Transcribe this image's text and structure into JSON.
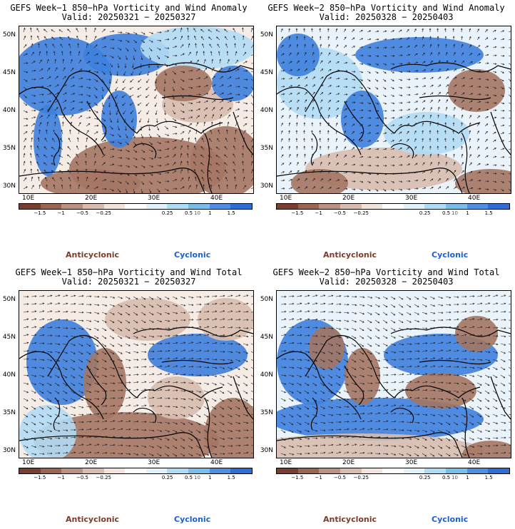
{
  "panels": [
    {
      "title": "GEFS Week−1 850−hPa Vorticity and Wind Anomaly",
      "valid": "Valid: 20250321 − 20250327",
      "lat_labels": [
        "50N",
        "45N",
        "40N",
        "35N",
        "30N"
      ],
      "lon_labels": [
        "10E",
        "20E",
        "30E",
        "40E"
      ],
      "colorbar_labels": [
        "−1.5",
        "−1",
        "−0.5",
        "−0.25",
        "0.25",
        "0.5",
        "1",
        "1.5"
      ],
      "colorbar_exponent": "10",
      "legend": {
        "anticyclonic": "Anticyclonic",
        "cyclonic": "Cyclonic"
      },
      "wind_direction": "anomaly-mixed"
    },
    {
      "title": "GEFS Week−2 850−hPa Vorticity and Wind Anomaly",
      "valid": "Valid: 20250328 − 20250403",
      "lat_labels": [
        "50N",
        "45N",
        "40N",
        "35N",
        "30N"
      ],
      "lon_labels": [
        "10E",
        "20E",
        "30E",
        "40E"
      ],
      "colorbar_labels": [
        "−1.5",
        "−1",
        "−0.5",
        "−0.25",
        "0.25",
        "0.5",
        "1",
        "1.5"
      ],
      "colorbar_exponent": "10",
      "legend": {
        "anticyclonic": "Anticyclonic",
        "cyclonic": "Cyclonic"
      },
      "wind_direction": "anomaly-weak"
    },
    {
      "title": "GEFS Week−1 850−hPa Vorticity and Wind Total",
      "valid": "Valid: 20250321 − 20250327",
      "lat_labels": [
        "50N",
        "45N",
        "40N",
        "35N",
        "30N"
      ],
      "lon_labels": [
        "10E",
        "20E",
        "30E",
        "40E"
      ],
      "colorbar_labels": [
        "−1.5",
        "−1",
        "−0.5",
        "−0.25",
        "0.25",
        "0.5",
        "1",
        "1.5"
      ],
      "colorbar_exponent": "10",
      "legend": {
        "anticyclonic": "Anticyclonic",
        "cyclonic": "Cyclonic"
      },
      "wind_direction": "total-westerly"
    },
    {
      "title": "GEFS Week−2 850−hPa Vorticity and Wind Total",
      "valid": "Valid: 20250328 − 20250403",
      "lat_labels": [
        "50N",
        "45N",
        "40N",
        "35N",
        "30N"
      ],
      "lon_labels": [
        "10E",
        "20E",
        "30E",
        "40E"
      ],
      "colorbar_labels": [
        "−1.5",
        "−1",
        "−0.5",
        "−0.25",
        "0.25",
        "0.5",
        "1",
        "1.5"
      ],
      "colorbar_exponent": "10",
      "legend": {
        "anticyclonic": "Anticyclonic",
        "cyclonic": "Cyclonic"
      },
      "wind_direction": "total-westerly"
    }
  ],
  "colorbar_colors": [
    "#7a3e2e",
    "#9c6552",
    "#bb917f",
    "#d9bcae",
    "#f0e4dc",
    "#ffffff",
    "#e1f2fb",
    "#aedcf5",
    "#7bbde9",
    "#4f8ee0",
    "#2e6cd6"
  ],
  "map_colors": {
    "anticyclonic": "#a47663",
    "light_anticyclonic": "#d8bcae",
    "neutral": "#f5ece6",
    "light_cyclonic": "#b3dcf4",
    "cyclonic": "#3d7fde",
    "ocean_base": "#eaf3fa"
  }
}
